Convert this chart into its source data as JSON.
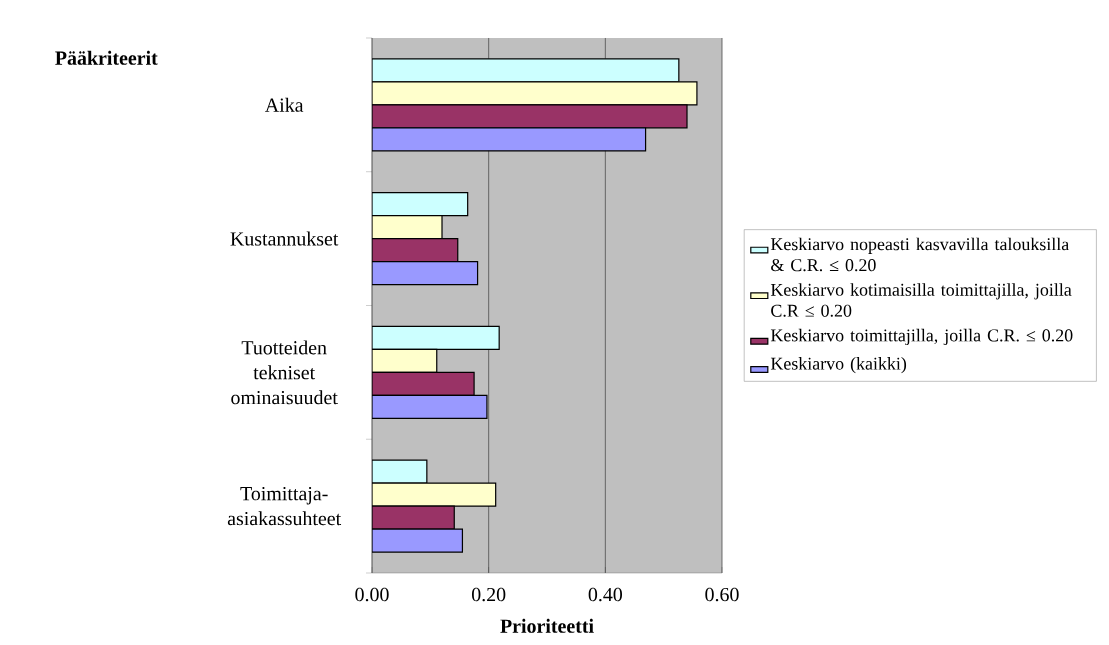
{
  "chart_data": {
    "type": "bar",
    "orientation": "horizontal",
    "xlabel": "Prioriteetti",
    "ylabel": "Pääkriteerit",
    "categories": [
      "Aika",
      "Kustannukset",
      "Tuotteiden tekniset ominaisuudet",
      "Toimittaja-asiakassuhteet"
    ],
    "series": [
      {
        "name": "Keskiarvo nopeasti kasvavilla talouksilla & C.R. ≤ 0.20",
        "color": "#ccffff",
        "values": [
          0.526,
          0.164,
          0.218,
          0.094
        ]
      },
      {
        "name": "Keskiarvo kotimaisilla toimittajilla, joilla C.R ≤ 0.20",
        "color": "#ffffcc",
        "values": [
          0.557,
          0.12,
          0.111,
          0.212
        ]
      },
      {
        "name": "Keskiarvo toimittajilla, joilla C.R. ≤ 0.20",
        "color": "#993366",
        "values": [
          0.54,
          0.147,
          0.175,
          0.141
        ]
      },
      {
        "name": "Keskiarvo (kaikki)",
        "color": "#9999ff",
        "values": [
          0.469,
          0.181,
          0.197,
          0.155
        ]
      }
    ],
    "xlim": [
      0,
      0.6
    ],
    "xticks": [
      {
        "value": 0,
        "label": "0.00"
      },
      {
        "value": 0.2,
        "label": "0.20"
      },
      {
        "value": 0.4,
        "label": "0.40"
      },
      {
        "value": 0.6,
        "label": "0.60"
      }
    ],
    "grid": "x",
    "legend": "right"
  }
}
